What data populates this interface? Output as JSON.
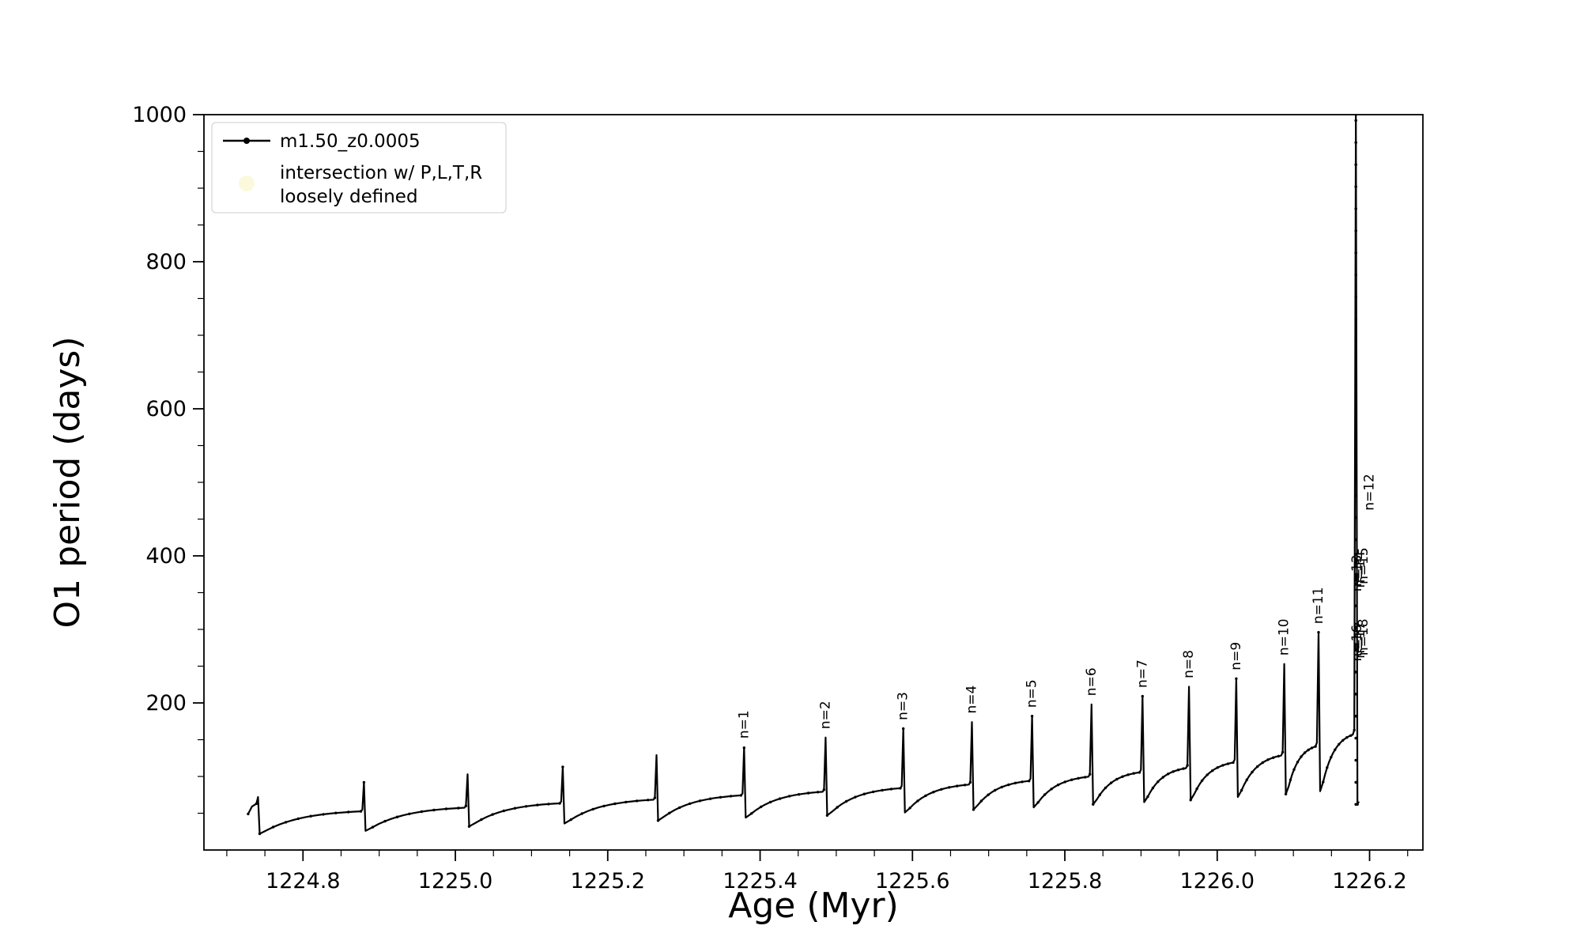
{
  "figure": {
    "background": "#ffffff"
  },
  "axes": {
    "xlabel": "Age (Myr)",
    "ylabel": "O1 period (days)",
    "xlim": [
      1224.67,
      1226.27
    ],
    "ylim": [
      0,
      1000
    ],
    "xticks": [
      1224.8,
      1225.0,
      1225.2,
      1225.4,
      1225.6,
      1225.8,
      1226.0,
      1226.2
    ],
    "yticks": [
      200,
      400,
      600,
      800,
      1000
    ],
    "xminor_step": 0.05,
    "yminor_step": 50,
    "line_color": "#000000"
  },
  "legend": {
    "entries": [
      {
        "label": "m1.50_z0.0005",
        "type": "line",
        "color": "#000000"
      },
      {
        "lines": [
          "intersection w/ P,L,T,R",
          "loosely defined"
        ],
        "type": "circle",
        "color": "#f8f4c0"
      }
    ],
    "edge_color": "#cccccc"
  },
  "chart_data": {
    "type": "line",
    "title": "",
    "xlabel": "Age (Myr)",
    "ylabel": "O1 period (days)",
    "xlim": [
      1224.67,
      1226.27
    ],
    "ylim": [
      0,
      1000
    ],
    "grid": false,
    "legend_position": "upper left",
    "series": [
      {
        "name": "m1.50_z0.0005",
        "color": "#000000",
        "description": "slowly rising baseline period interrupted by sharp pulse spikes followed by sudden drops",
        "cycles": [
          {
            "age": 1224.741,
            "peak": 72,
            "dip": 22,
            "plateau": 63
          },
          {
            "age": 1224.88,
            "peak": 92,
            "dip": 26,
            "plateau": 55
          },
          {
            "age": 1225.016,
            "peak": 103,
            "dip": 32,
            "plateau": 60
          },
          {
            "age": 1225.141,
            "peak": 113,
            "dip": 36,
            "plateau": 66
          },
          {
            "age": 1225.264,
            "peak": 129,
            "dip": 40,
            "plateau": 71
          },
          {
            "age": 1225.379,
            "peak": 139,
            "dip": 44,
            "plateau": 77
          },
          {
            "age": 1225.486,
            "peak": 153,
            "dip": 47,
            "plateau": 82
          },
          {
            "age": 1225.588,
            "peak": 165,
            "dip": 51,
            "plateau": 87
          },
          {
            "age": 1225.678,
            "peak": 174,
            "dip": 55,
            "plateau": 92
          },
          {
            "age": 1225.757,
            "peak": 182,
            "dip": 58,
            "plateau": 97
          },
          {
            "age": 1225.835,
            "peak": 198,
            "dip": 62,
            "plateau": 103
          },
          {
            "age": 1225.902,
            "peak": 209,
            "dip": 65,
            "plateau": 109
          },
          {
            "age": 1225.963,
            "peak": 222,
            "dip": 68,
            "plateau": 115
          },
          {
            "age": 1226.025,
            "peak": 233,
            "dip": 72,
            "plateau": 123
          },
          {
            "age": 1226.088,
            "peak": 253,
            "dip": 76,
            "plateau": 133
          },
          {
            "age": 1226.133,
            "peak": 296,
            "dip": 80,
            "plateau": 146
          },
          {
            "age": 1226.182,
            "peak": 1000,
            "dip": 62,
            "plateau": 163,
            "dense": true
          }
        ]
      }
    ],
    "annotations": [
      {
        "text": "n=1",
        "age": 1225.379,
        "value": 145
      },
      {
        "text": "n=2",
        "age": 1225.486,
        "value": 158
      },
      {
        "text": "n=3",
        "age": 1225.588,
        "value": 170
      },
      {
        "text": "n=4",
        "age": 1225.678,
        "value": 179
      },
      {
        "text": "n=5",
        "age": 1225.757,
        "value": 187
      },
      {
        "text": "n=6",
        "age": 1225.835,
        "value": 203
      },
      {
        "text": "n=7",
        "age": 1225.902,
        "value": 214
      },
      {
        "text": "n=8",
        "age": 1225.963,
        "value": 227
      },
      {
        "text": "n=9",
        "age": 1226.025,
        "value": 238
      },
      {
        "text": "n=10",
        "age": 1226.088,
        "value": 258
      },
      {
        "text": "n=11",
        "age": 1226.133,
        "value": 301
      },
      {
        "text": "n=12",
        "age": 1226.2,
        "value": 455
      },
      {
        "text": "n=13",
        "age": 1226.184,
        "value": 345
      },
      {
        "text": "n=14",
        "age": 1226.188,
        "value": 350
      },
      {
        "text": "n=15",
        "age": 1226.192,
        "value": 355
      },
      {
        "text": "n=16",
        "age": 1226.184,
        "value": 250
      },
      {
        "text": "n=17",
        "age": 1226.188,
        "value": 254
      },
      {
        "text": "n=18",
        "age": 1226.192,
        "value": 258
      }
    ]
  }
}
